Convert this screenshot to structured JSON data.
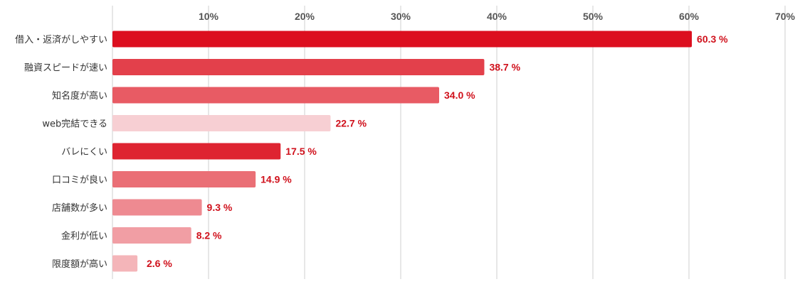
{
  "chart_data": {
    "type": "bar",
    "orientation": "horizontal",
    "categories": [
      "借入・返済がしやすい",
      "融資スピードが速い",
      "知名度が高い",
      "web完結できる",
      "バレにくい",
      "口コミが良い",
      "店舗数が多い",
      "金利が低い",
      "限度額が高い"
    ],
    "values": [
      60.3,
      38.7,
      34.0,
      22.7,
      17.5,
      14.9,
      9.3,
      8.2,
      2.6
    ],
    "value_labels": [
      "60.3 %",
      "38.7 %",
      "34.0 %",
      "22.7 %",
      "17.5 %",
      "14.9 %",
      "9.3 %",
      "8.2 %",
      "2.6 %"
    ],
    "bar_colors": [
      "#dc0f1f",
      "#e3404b",
      "#e85b64",
      "#f7cfd3",
      "#de2431",
      "#ea6f76",
      "#ee8a91",
      "#f19ea4",
      "#f4b5b9"
    ],
    "value_label_color": "#d0111c",
    "xticks": [
      10,
      20,
      30,
      40,
      50,
      60,
      70
    ],
    "xtick_labels": [
      "10%",
      "20%",
      "30%",
      "40%",
      "50%",
      "60%",
      "70%"
    ],
    "xlim": [
      0,
      70
    ],
    "xaxis_position": "top",
    "grid": true,
    "title": "",
    "xlabel": "",
    "ylabel": ""
  }
}
